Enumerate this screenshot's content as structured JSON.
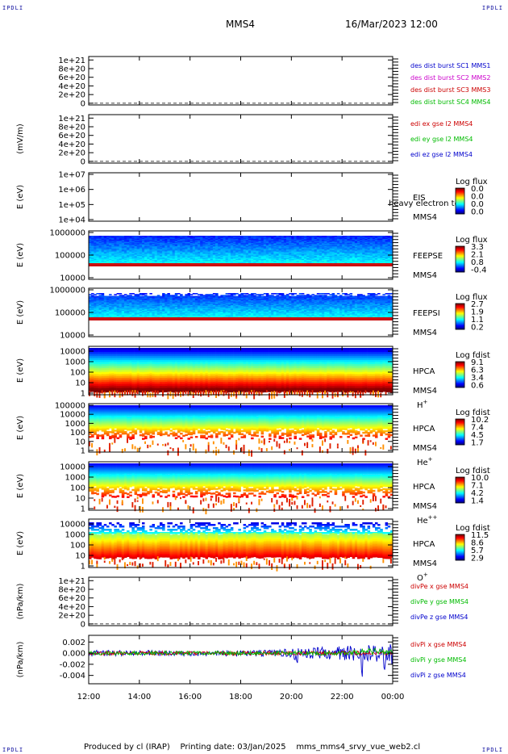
{
  "header": {
    "spacecraft": "MMS4",
    "datetime": "16/Mar/2023 12:00",
    "corner_label": "IPDLI"
  },
  "footer": {
    "produced_by": "Produced by cl (IRAP)",
    "printing_date": "Printing date: 03/Jan/2025",
    "config_file": "mms_mms4_srvy_vue_web2.cl"
  },
  "time_axis": {
    "ticks": [
      "12:00",
      "14:00",
      "16:00",
      "18:00",
      "20:00",
      "22:00",
      "00:00"
    ]
  },
  "chart_data": [
    {
      "id": "des-dist-burst",
      "type": "line",
      "ylabel": "",
      "yticks": [
        "1e+21",
        "8e+20",
        "6e+20",
        "4e+20",
        "2e+20",
        "0"
      ],
      "ylim": [
        -4e+19,
        1.08e+21
      ],
      "zero_line": true,
      "series": [
        {
          "name": "des dist burst SC1 MMS1",
          "color": "#0000cc",
          "values": []
        },
        {
          "name": "des dist burst SC2 MMS2",
          "color": "#cc00cc",
          "values": []
        },
        {
          "name": "des dist burst SC3 MMS3",
          "color": "#cc0000",
          "values": []
        },
        {
          "name": "des dist burst SC4 MMS4",
          "color": "#00bb00",
          "values": []
        }
      ]
    },
    {
      "id": "edi-e-gse",
      "type": "line",
      "ylabel": "(mV/m)",
      "yticks": [
        "1e+21",
        "8e+20",
        "6e+20",
        "4e+20",
        "2e+20",
        "0"
      ],
      "ylim": [
        -4e+19,
        1.08e+21
      ],
      "zero_line": true,
      "series": [
        {
          "name": "edi ex gse l2 MMS4",
          "color": "#cc0000",
          "values": []
        },
        {
          "name": "edi ey gse l2 MMS4",
          "color": "#00bb00",
          "values": []
        },
        {
          "name": "edi ez gse l2 MMS4",
          "color": "#0000cc",
          "values": []
        }
      ]
    },
    {
      "id": "eis",
      "type": "heatmap",
      "ylabel": "E (eV)",
      "yticks": [
        "1e+07",
        "1e+06",
        "1e+05",
        "1e+04"
      ],
      "log_y": true,
      "ylim": [
        10000,
        10000000
      ],
      "instrument": "EIS",
      "spacecraft": "MMS4",
      "overlay_text": "heavy electron to",
      "colorbar_title": "Log flux",
      "colorbar_ticks": [
        "0.0",
        "0.0",
        "0.0",
        "0.0"
      ],
      "has_data": false
    },
    {
      "id": "feeps-e",
      "type": "heatmap",
      "ylabel": "E (eV)",
      "yticks": [
        "1000000",
        "100000",
        "10000"
      ],
      "log_y": true,
      "ylim": [
        10000,
        1000000
      ],
      "instrument": "FEEPSE",
      "spacecraft": "MMS4",
      "colorbar_title": "Log flux",
      "colorbar_ticks": [
        "3.3",
        "2.1",
        "0.8",
        "-0.4"
      ],
      "has_data": true
    },
    {
      "id": "feeps-i",
      "type": "heatmap",
      "ylabel": "E (eV)",
      "yticks": [
        "1000000",
        "100000",
        "10000"
      ],
      "log_y": true,
      "ylim": [
        10000,
        1000000
      ],
      "instrument": "FEEPSI",
      "spacecraft": "MMS4",
      "colorbar_title": "Log flux",
      "colorbar_ticks": [
        "2.7",
        "1.9",
        "1.1",
        "0.2"
      ],
      "has_data": true
    },
    {
      "id": "hpca-h",
      "type": "heatmap",
      "ylabel": "E (eV)",
      "yticks": [
        "10000",
        "1000",
        "100",
        "10",
        "1"
      ],
      "log_y": true,
      "ylim": [
        1,
        40000
      ],
      "instrument": "HPCA",
      "spacecraft": "MMS4",
      "species": "H",
      "species_sup": "+",
      "colorbar_title": "Log fdist",
      "colorbar_ticks": [
        "9.1",
        "6.3",
        "3.4",
        "0.6"
      ],
      "has_data": true
    },
    {
      "id": "hpca-he",
      "type": "heatmap",
      "ylabel": "E (eV)",
      "yticks": [
        "100000",
        "10000",
        "1000",
        "100",
        "10",
        "1"
      ],
      "log_y": true,
      "ylim": [
        1,
        100000
      ],
      "instrument": "HPCA",
      "spacecraft": "MMS4",
      "species": "He",
      "species_sup": "+",
      "colorbar_title": "Log fdist",
      "colorbar_ticks": [
        "10.2",
        "7.4",
        "4.5",
        "1.7"
      ],
      "has_data": true
    },
    {
      "id": "hpca-hepp",
      "type": "heatmap",
      "ylabel": "E (eV)",
      "yticks": [
        "10000",
        "1000",
        "100",
        "10",
        "1"
      ],
      "log_y": true,
      "ylim": [
        1,
        40000
      ],
      "instrument": "HPCA",
      "spacecraft": "MMS4",
      "species": "He",
      "species_sup": "++",
      "colorbar_title": "Log fdist",
      "colorbar_ticks": [
        "10.0",
        "7.1",
        "4.2",
        "1.4"
      ],
      "has_data": true
    },
    {
      "id": "hpca-o",
      "type": "heatmap",
      "ylabel": "E (eV)",
      "yticks": [
        "10000",
        "1000",
        "100",
        "10",
        "1"
      ],
      "log_y": true,
      "ylim": [
        1,
        40000
      ],
      "instrument": "HPCA",
      "spacecraft": "MMS4",
      "species": "O",
      "species_sup": "+",
      "colorbar_title": "Log fdist",
      "colorbar_ticks": [
        "11.5",
        "8.6",
        "5.7",
        "2.9"
      ],
      "has_data": true
    },
    {
      "id": "divpe",
      "type": "line",
      "ylabel": "(nPa/km)",
      "yticks": [
        "1e+21",
        "8e+20",
        "6e+20",
        "4e+20",
        "2e+20",
        "0"
      ],
      "ylim": [
        -4e+19,
        1.08e+21
      ],
      "zero_line": true,
      "series": [
        {
          "name": "divPe x gse MMS4",
          "color": "#cc0000",
          "values": []
        },
        {
          "name": "divPe y gse MMS4",
          "color": "#00bb00",
          "values": []
        },
        {
          "name": "divPe z gse MMS4",
          "color": "#0000cc",
          "values": []
        }
      ]
    },
    {
      "id": "divpi",
      "type": "line",
      "ylabel": "(nPa/km)",
      "yticks": [
        "0.002",
        "0.000",
        "-0.002",
        "-0.004"
      ],
      "yvals": [
        0.002,
        0.0,
        -0.002,
        -0.004
      ],
      "ylim": [
        -0.0055,
        0.0032
      ],
      "zero_line": false,
      "series": [
        {
          "name": "divPi x gse MMS4",
          "color": "#cc0000",
          "values": []
        },
        {
          "name": "divPi y gse MMS4",
          "color": "#00bb00",
          "values": []
        },
        {
          "name": "divPi z gse MMS4",
          "color": "#0000cc",
          "values": []
        }
      ]
    }
  ]
}
